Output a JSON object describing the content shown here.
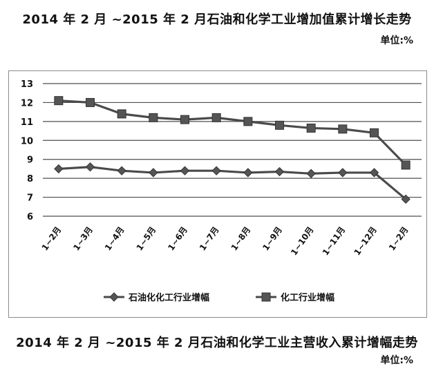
{
  "header": {
    "title": "2014 年 2 月 ~2015 年 2 月石油和化学工业增加值累计增长走势",
    "unit": "单位:%"
  },
  "footer": {
    "title": "2014 年 2 月 ~2015 年 2 月石油和化学工业主营收入累计增幅走势",
    "unit": "单位:%"
  },
  "chart_data": {
    "type": "line",
    "title": "2014 年 2 月 ~2015 年 2 月石油和化学工业增加值累计增长走势",
    "unit": "单位:%",
    "categories": [
      "1~2月",
      "1~3月",
      "1~4月",
      "1~5月",
      "1~6月",
      "1~7月",
      "1~8月",
      "1~9月",
      "1~10月",
      "1~11月",
      "1~12月",
      "1~2月"
    ],
    "ylim": [
      6,
      13
    ],
    "yticks": [
      6,
      7,
      8,
      9,
      10,
      11,
      12,
      13
    ],
    "grid": true,
    "legend_position": "bottom",
    "series": [
      {
        "name": "石油化化工行业增幅",
        "marker": "diamond",
        "color": "#4a4a4a",
        "values": [
          8.5,
          8.6,
          8.4,
          8.3,
          8.4,
          8.4,
          8.3,
          8.35,
          8.25,
          8.3,
          8.3,
          6.9
        ]
      },
      {
        "name": "化工行业增幅",
        "marker": "square",
        "color": "#4a4a4a",
        "values": [
          12.1,
          12.0,
          11.4,
          11.2,
          11.1,
          11.2,
          11.0,
          10.8,
          10.65,
          10.6,
          10.4,
          8.7
        ]
      }
    ]
  }
}
